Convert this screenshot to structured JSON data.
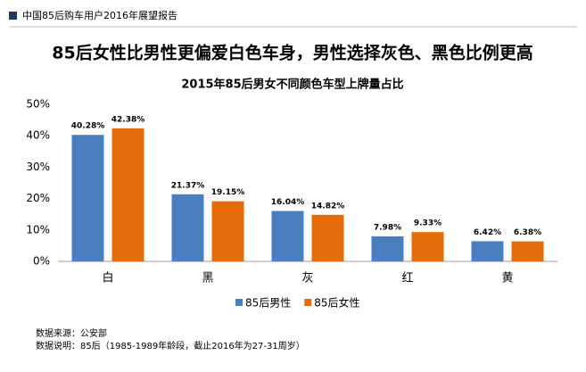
{
  "header": {
    "title": "中国85后购车用户2016年展望报告"
  },
  "headline": "85后女性比男性更偏爱白色车身，男性选择灰色、黑色比例更高",
  "chart_data": {
    "type": "bar",
    "title": "2015年85后男女不同颜色车型上牌量占比",
    "categories": [
      "白",
      "黑",
      "灰",
      "红",
      "黄"
    ],
    "series": [
      {
        "name": "85后男性",
        "color": "#4a7ebf",
        "label_color": "#000000",
        "values": [
          40.28,
          21.37,
          16.04,
          7.98,
          6.42
        ],
        "value_labels": [
          "40.28%",
          "21.37%",
          "16.04%",
          "7.98%",
          "6.42%"
        ]
      },
      {
        "name": "85后女性",
        "color": "#e46c0a",
        "label_color": "#e46c0a",
        "values": [
          42.38,
          19.15,
          14.82,
          9.33,
          6.38
        ],
        "value_labels": [
          "42.38%",
          "19.15%",
          "14.82%",
          "9.33%",
          "6.38%"
        ]
      }
    ],
    "ylim": [
      0,
      50
    ],
    "yticks": [
      {
        "value": 0,
        "label": "0%"
      },
      {
        "value": 10,
        "label": "10%"
      },
      {
        "value": 20,
        "label": "20%"
      },
      {
        "value": 30,
        "label": "30%"
      },
      {
        "value": 40,
        "label": "40%"
      },
      {
        "value": 50,
        "label": "50%"
      }
    ],
    "grid": false,
    "legend": "bottom"
  },
  "footer": {
    "source": "数据来源：公安部",
    "note": "数据说明：85后（1985-1989年龄段，截止2016年为27-31周岁）"
  }
}
